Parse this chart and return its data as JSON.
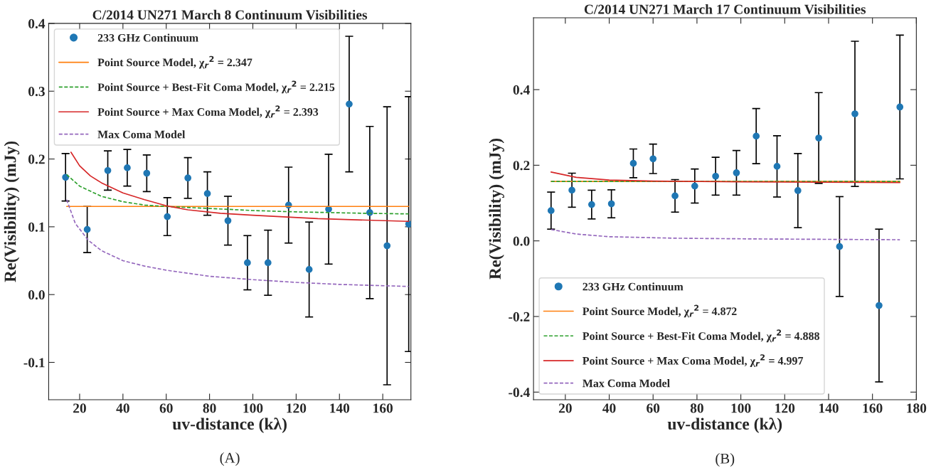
{
  "chart_data": [
    {
      "type": "scatter",
      "title": "C/2014 UN271 March 8 Continuum Visibilities",
      "xlabel": "uv-distance (kλ)",
      "ylabel": "Re(Visibility) (mJy)",
      "xlim": [
        5.7,
        173
      ],
      "ylim": [
        -0.155,
        0.4
      ],
      "xticks": [
        20,
        40,
        60,
        80,
        100,
        120,
        140,
        160
      ],
      "yticks": [
        -0.1,
        {
          "value": 0,
          "label": "0.0"
        },
        0.1,
        0.2,
        0.3,
        0.4
      ],
      "legend": "top left",
      "grid": false,
      "annotations": [
        "(A)"
      ],
      "series": [
        {
          "name": "233 GHz Continuum",
          "marker": "circle",
          "color": "#1f77b4",
          "x": [
            13.5,
            23.5,
            33,
            42,
            51,
            60.5,
            70,
            79,
            88.5,
            97.5,
            107,
            116.5,
            126,
            135,
            144.5,
            154,
            162,
            172
          ],
          "values": [
            0.173,
            0.096,
            0.183,
            0.187,
            0.179,
            0.115,
            0.172,
            0.149,
            0.109,
            0.047,
            0.047,
            0.132,
            0.037,
            0.126,
            0.281,
            0.121,
            0.072,
            0.104
          ],
          "errors": [
            0.035,
            0.034,
            0.029,
            0.027,
            0.027,
            0.028,
            0.03,
            0.032,
            0.036,
            0.04,
            0.048,
            0.056,
            0.07,
            0.081,
            0.1,
            0.127,
            0.205,
            0.188
          ]
        },
        {
          "name": "Point Source Model, χ$_{r}$$^{2}$ = 2.347",
          "type": "line",
          "line_style": "solid",
          "color": "#ff7f0e",
          "x": [
            14,
            172
          ],
          "values": [
            0.13,
            0.13
          ]
        },
        {
          "name": "Point Source + Best-Fit Coma Model, χ$_{r}$$^{2}$ = 2.215",
          "type": "line",
          "line_style": "dashed",
          "color": "#2ca02c",
          "x": [
            14,
            20,
            30,
            40,
            50,
            60,
            80,
            100,
            120,
            150,
            172
          ],
          "values": [
            0.177,
            0.16,
            0.145,
            0.137,
            0.132,
            0.13,
            0.127,
            0.124,
            0.122,
            0.12,
            0.119
          ]
        },
        {
          "name": "Point Source + Max Coma Model, χ$_{r}$$^{2}$ = 2.393",
          "type": "line",
          "line_style": "solid",
          "color": "#d62728",
          "x": [
            16,
            20,
            25,
            30,
            40,
            50,
            60,
            70,
            85,
            100,
            130,
            172
          ],
          "values": [
            0.21,
            0.19,
            0.175,
            0.165,
            0.15,
            0.14,
            0.131,
            0.125,
            0.12,
            0.117,
            0.112,
            0.108
          ]
        },
        {
          "name": "Max Coma Model",
          "type": "line",
          "line_style": "dashed",
          "color": "#9467bd",
          "x": [
            14,
            18,
            24,
            30,
            40,
            50,
            60,
            80,
            100,
            120,
            140,
            172
          ],
          "values": [
            0.14,
            0.105,
            0.08,
            0.065,
            0.05,
            0.042,
            0.036,
            0.027,
            0.022,
            0.018,
            0.015,
            0.012
          ]
        }
      ]
    },
    {
      "type": "scatter",
      "title": "C/2014 UN271 March 17 Continuum Visibilities",
      "xlabel": "uv-distance (kλ)",
      "ylabel": "Re(Visibility) (mJy)",
      "xlim": [
        5.5,
        180
      ],
      "ylim": [
        -0.42,
        0.59
      ],
      "xticks": [
        20,
        40,
        60,
        80,
        100,
        120,
        140,
        160,
        180
      ],
      "yticks": [
        -0.4,
        -0.2,
        {
          "value": 0,
          "label": "0.0"
        },
        0.2,
        0.4
      ],
      "legend": "bottom left",
      "grid": false,
      "annotations": [
        "(B)"
      ],
      "series": [
        {
          "name": "233 GHz Continuum",
          "marker": "circle",
          "color": "#1f77b4",
          "x": [
            13.5,
            23,
            32,
            41,
            51,
            60,
            70,
            79,
            88.5,
            98,
            107,
            116.5,
            126,
            135.5,
            145,
            152,
            163,
            172.5
          ],
          "values": [
            0.08,
            0.134,
            0.096,
            0.098,
            0.205,
            0.217,
            0.119,
            0.145,
            0.171,
            0.18,
            0.277,
            0.197,
            0.133,
            0.272,
            -0.015,
            0.336,
            -0.171,
            0.354
          ],
          "errors": [
            0.049,
            0.045,
            0.038,
            0.037,
            0.038,
            0.039,
            0.043,
            0.045,
            0.05,
            0.059,
            0.073,
            0.081,
            0.098,
            0.12,
            0.132,
            0.192,
            0.202,
            0.19
          ]
        },
        {
          "name": "Point Source Model, χ$_{r}$$^{2}$ = 4.872",
          "type": "line",
          "line_style": "solid",
          "color": "#ff7f0e",
          "x": [
            13.5,
            172.5
          ],
          "values": [
            0.157,
            0.157
          ]
        },
        {
          "name": "Point Source + Best-Fit Coma Model, χ$_{r}$$^{2}$ = 4.888",
          "type": "line",
          "line_style": "dashed",
          "color": "#2ca02c",
          "x": [
            13.5,
            172.5
          ],
          "values": [
            0.157,
            0.157
          ]
        },
        {
          "name": "Point Source + Max Coma Model, χ$_{r}$$^{2}$ = 4.997",
          "type": "line",
          "line_style": "solid",
          "color": "#d62728",
          "x": [
            13.5,
            25,
            40,
            60,
            100,
            172.5
          ],
          "values": [
            0.182,
            0.168,
            0.161,
            0.158,
            0.156,
            0.154
          ]
        },
        {
          "name": "Max Coma Model",
          "type": "line",
          "line_style": "dashed",
          "color": "#9467bd",
          "x": [
            13.5,
            25,
            40,
            70,
            110,
            172.5
          ],
          "values": [
            0.03,
            0.018,
            0.011,
            0.007,
            0.005,
            0.003
          ]
        }
      ]
    }
  ]
}
